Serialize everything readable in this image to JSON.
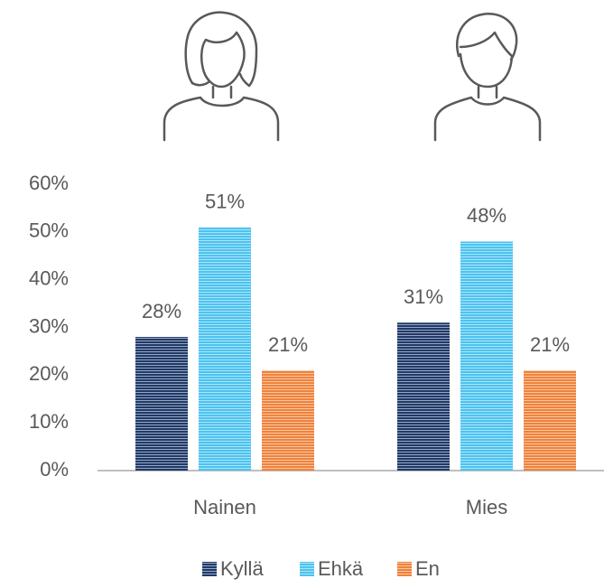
{
  "chart_data": {
    "type": "bar",
    "categories": [
      "Nainen",
      "Mies"
    ],
    "series": [
      {
        "name": "Kyllä",
        "color": "#1f3a6a",
        "values": [
          28,
          31
        ],
        "value_labels": [
          "28%",
          "31%"
        ]
      },
      {
        "name": "Ehkä",
        "color": "#4cc3f0",
        "values": [
          51,
          48
        ],
        "value_labels": [
          "51%",
          "48%"
        ]
      },
      {
        "name": "En",
        "color": "#f0823a",
        "values": [
          21,
          21
        ],
        "value_labels": [
          "21%",
          "21%"
        ]
      }
    ],
    "ylim": [
      0,
      60
    ],
    "yticks": [
      {
        "value": 0,
        "label": "0%"
      },
      {
        "value": 10,
        "label": "10%"
      },
      {
        "value": 20,
        "label": "20%"
      },
      {
        "value": 30,
        "label": "30%"
      },
      {
        "value": 40,
        "label": "40%"
      },
      {
        "value": 50,
        "label": "50%"
      },
      {
        "value": 60,
        "label": "60%"
      }
    ],
    "legend": "bottom"
  }
}
